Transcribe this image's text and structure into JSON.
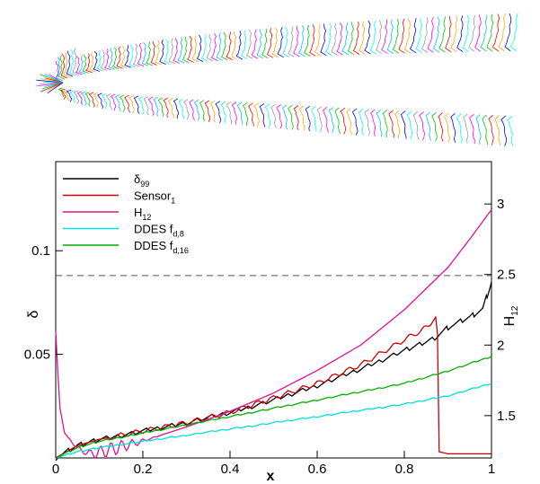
{
  "chart_data": [
    {
      "type": "line",
      "title": "",
      "description_kind": "boundary-layer velocity profiles along an airfoil contour",
      "profile_colors": [
        "#ff00ff",
        "#00bfff",
        "#00cc00",
        "#ff0000",
        "#ffaa00",
        "#0000ff",
        "#00ffff",
        "#999999"
      ]
    },
    {
      "type": "line",
      "title": "",
      "xlabel": "x",
      "ylabel_left": "δ",
      "ylabel_right": "H",
      "ylabel_right_sub": "12",
      "xlim": [
        0,
        1
      ],
      "ylim_left": [
        0,
        0.143
      ],
      "ylim_right": [
        1.2,
        3.3
      ],
      "x_ticks": [
        "0",
        "0.2",
        "0.4",
        "0.6",
        "0.8",
        "1"
      ],
      "x_tick_values": [
        0,
        0.2,
        0.4,
        0.6,
        0.8,
        1
      ],
      "y_left_ticks": [
        "0.05",
        "0.1"
      ],
      "y_left_tick_values": [
        0.05,
        0.1
      ],
      "y_right_ticks": [
        "1.5",
        "2",
        "2.5",
        "3"
      ],
      "y_right_tick_values": [
        1.5,
        2.0,
        2.5,
        3.0
      ],
      "grid": false,
      "legend_position": "top-left",
      "reference_line": {
        "axis": "left",
        "y": 0.088,
        "style": "dashed"
      },
      "series": [
        {
          "name": "δ",
          "name_sub": "99",
          "color": "#000000",
          "axis": "left",
          "x": [
            0,
            0.05,
            0.1,
            0.2,
            0.3,
            0.4,
            0.5,
            0.6,
            0.7,
            0.8,
            0.87,
            0.9,
            0.95,
            0.98,
            1.0
          ],
          "y": [
            0.0,
            0.006,
            0.009,
            0.013,
            0.017,
            0.022,
            0.028,
            0.035,
            0.043,
            0.052,
            0.058,
            0.063,
            0.068,
            0.072,
            0.085
          ]
        },
        {
          "name": "Sensor",
          "name_sub": "1",
          "color": "#cc0000",
          "axis": "left",
          "x": [
            0,
            0.05,
            0.1,
            0.2,
            0.3,
            0.4,
            0.5,
            0.6,
            0.7,
            0.8,
            0.86,
            0.872,
            0.876,
            0.88,
            0.9,
            0.95,
            1.0
          ],
          "y": [
            0.0,
            0.006,
            0.009,
            0.013,
            0.017,
            0.022,
            0.029,
            0.036,
            0.045,
            0.057,
            0.064,
            0.068,
            0.06,
            0.003,
            0.002,
            0.002,
            0.002
          ]
        },
        {
          "name": "H",
          "name_sub": "12",
          "color": "#e0109a",
          "axis": "right",
          "x": [
            0,
            0.005,
            0.01,
            0.02,
            0.04,
            0.06,
            0.08,
            0.1,
            0.15,
            0.2,
            0.3,
            0.4,
            0.5,
            0.6,
            0.7,
            0.8,
            0.9,
            0.95,
            1.0
          ],
          "y": [
            2.1,
            1.8,
            1.55,
            1.38,
            1.3,
            1.25,
            1.23,
            1.24,
            1.28,
            1.32,
            1.42,
            1.53,
            1.66,
            1.82,
            2.0,
            2.25,
            2.55,
            2.75,
            2.96
          ]
        },
        {
          "name": "DDES f",
          "name_sub": "d,8",
          "color": "#00e0e0",
          "axis": "left",
          "x": [
            0,
            0.05,
            0.1,
            0.2,
            0.3,
            0.4,
            0.5,
            0.6,
            0.7,
            0.8,
            0.9,
            1.0
          ],
          "y": [
            0.0,
            0.003,
            0.005,
            0.008,
            0.011,
            0.014,
            0.017,
            0.02,
            0.023,
            0.026,
            0.03,
            0.036
          ]
        },
        {
          "name": "DDES f",
          "name_sub": "d,16",
          "color": "#00b000",
          "axis": "left",
          "x": [
            0,
            0.05,
            0.1,
            0.2,
            0.3,
            0.4,
            0.5,
            0.6,
            0.7,
            0.8,
            0.9,
            1.0
          ],
          "y": [
            0.0,
            0.005,
            0.008,
            0.012,
            0.016,
            0.02,
            0.024,
            0.028,
            0.032,
            0.036,
            0.042,
            0.049
          ]
        }
      ]
    }
  ]
}
